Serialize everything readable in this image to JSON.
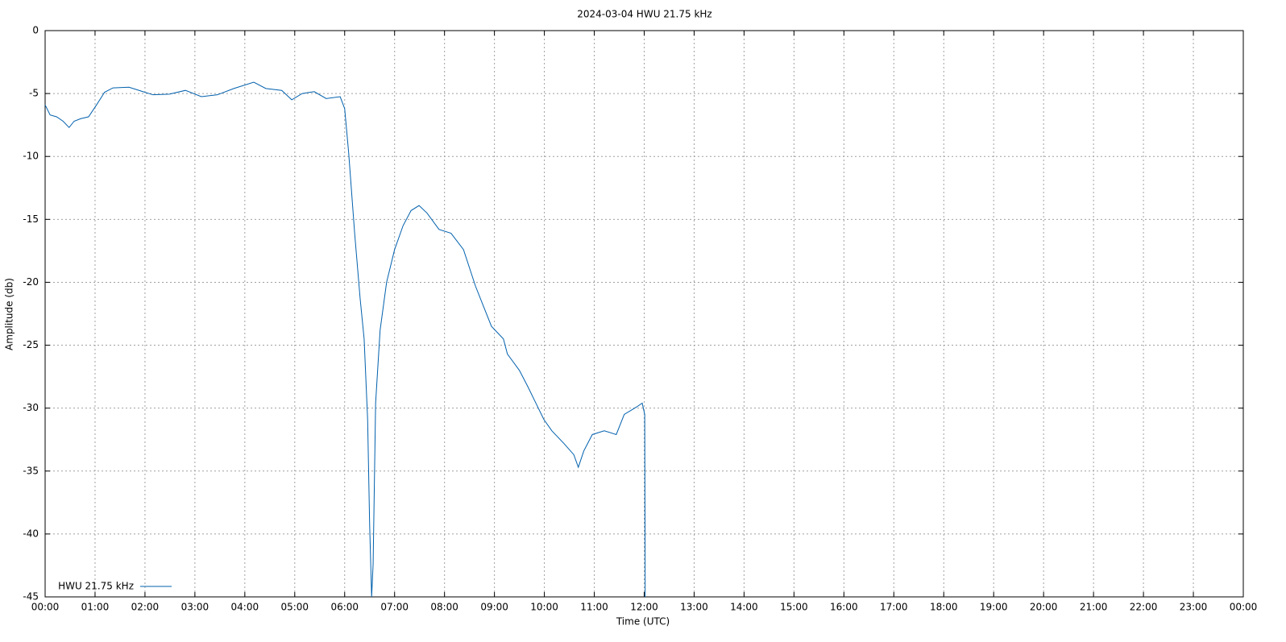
{
  "chart_data": {
    "type": "line",
    "title": "2024-03-04 HWU 21.75 kHz",
    "x_label": "Time (UTC)",
    "y_label": "Amplitude (db)",
    "x": [
      0,
      0.1,
      0.23,
      0.36,
      0.48,
      0.58,
      0.71,
      0.87,
      1.03,
      1.19,
      1.36,
      1.68,
      1.92,
      2.16,
      2.49,
      2.81,
      3.13,
      3.45,
      3.78,
      4.18,
      4.42,
      4.74,
      4.94,
      5.15,
      5.39,
      5.63,
      5.91,
      6.0,
      6.08,
      6.2,
      6.31,
      6.39,
      6.46,
      6.5,
      6.54,
      6.57,
      6.62,
      6.71,
      6.84,
      7.0,
      7.17,
      7.33,
      7.49,
      7.65,
      7.89,
      8.13,
      8.38,
      8.62,
      8.78,
      8.94,
      9.18,
      9.26,
      9.5,
      9.67,
      9.83,
      9.99,
      10.15,
      10.39,
      10.59,
      10.68,
      10.79,
      10.96,
      11.2,
      11.44,
      11.6,
      11.85,
      11.96,
      12.01,
      12.02
    ],
    "series": [
      {
        "name": "HWU 21.75 kHz",
        "color": "#0060ad",
        "values": [
          -5.9,
          -6.7,
          -6.85,
          -7.2,
          -7.7,
          -7.2,
          -7.0,
          -6.85,
          -5.9,
          -4.9,
          -4.55,
          -4.5,
          -4.8,
          -5.1,
          -5.05,
          -4.75,
          -5.25,
          -5.1,
          -4.6,
          -4.1,
          -4.6,
          -4.75,
          -5.5,
          -5.0,
          -4.85,
          -5.4,
          -5.25,
          -6.2,
          -9.7,
          -16.1,
          -21.3,
          -24.5,
          -30.9,
          -39.2,
          -45,
          -42.4,
          -29.6,
          -23.8,
          -20.0,
          -17.4,
          -15.5,
          -14.3,
          -13.9,
          -14.5,
          -15.8,
          -16.1,
          -17.4,
          -20.3,
          -21.9,
          -23.5,
          -24.5,
          -25.7,
          -27.0,
          -28.3,
          -29.6,
          -30.9,
          -31.8,
          -32.8,
          -33.7,
          -34.7,
          -33.4,
          -32.1,
          -31.8,
          -32.1,
          -30.5,
          -29.9,
          -29.6,
          -30.5,
          -45
        ]
      }
    ],
    "xlim": [
      0,
      24
    ],
    "xticks": [
      {
        "value": 0,
        "label": "00:00"
      },
      {
        "value": 1,
        "label": "01:00"
      },
      {
        "value": 2,
        "label": "02:00"
      },
      {
        "value": 3,
        "label": "03:00"
      },
      {
        "value": 4,
        "label": "04:00"
      },
      {
        "value": 5,
        "label": "05:00"
      },
      {
        "value": 6,
        "label": "06:00"
      },
      {
        "value": 7,
        "label": "07:00"
      },
      {
        "value": 8,
        "label": "08:00"
      },
      {
        "value": 9,
        "label": "09:00"
      },
      {
        "value": 10,
        "label": "10:00"
      },
      {
        "value": 11,
        "label": "11:00"
      },
      {
        "value": 12,
        "label": "12:00"
      },
      {
        "value": 13,
        "label": "13:00"
      },
      {
        "value": 14,
        "label": "14:00"
      },
      {
        "value": 15,
        "label": "15:00"
      },
      {
        "value": 16,
        "label": "16:00"
      },
      {
        "value": 17,
        "label": "17:00"
      },
      {
        "value": 18,
        "label": "18:00"
      },
      {
        "value": 19,
        "label": "19:00"
      },
      {
        "value": 20,
        "label": "20:00"
      },
      {
        "value": 21,
        "label": "21:00"
      },
      {
        "value": 22,
        "label": "22:00"
      },
      {
        "value": 23,
        "label": "23:00"
      },
      {
        "value": 24,
        "label": "00:00"
      }
    ],
    "ylim": [
      -45,
      0
    ],
    "yticks": [
      0,
      -5,
      -10,
      -15,
      -20,
      -25,
      -30,
      -35,
      -40,
      -45
    ],
    "grid": true,
    "legend": "bottom-left"
  }
}
